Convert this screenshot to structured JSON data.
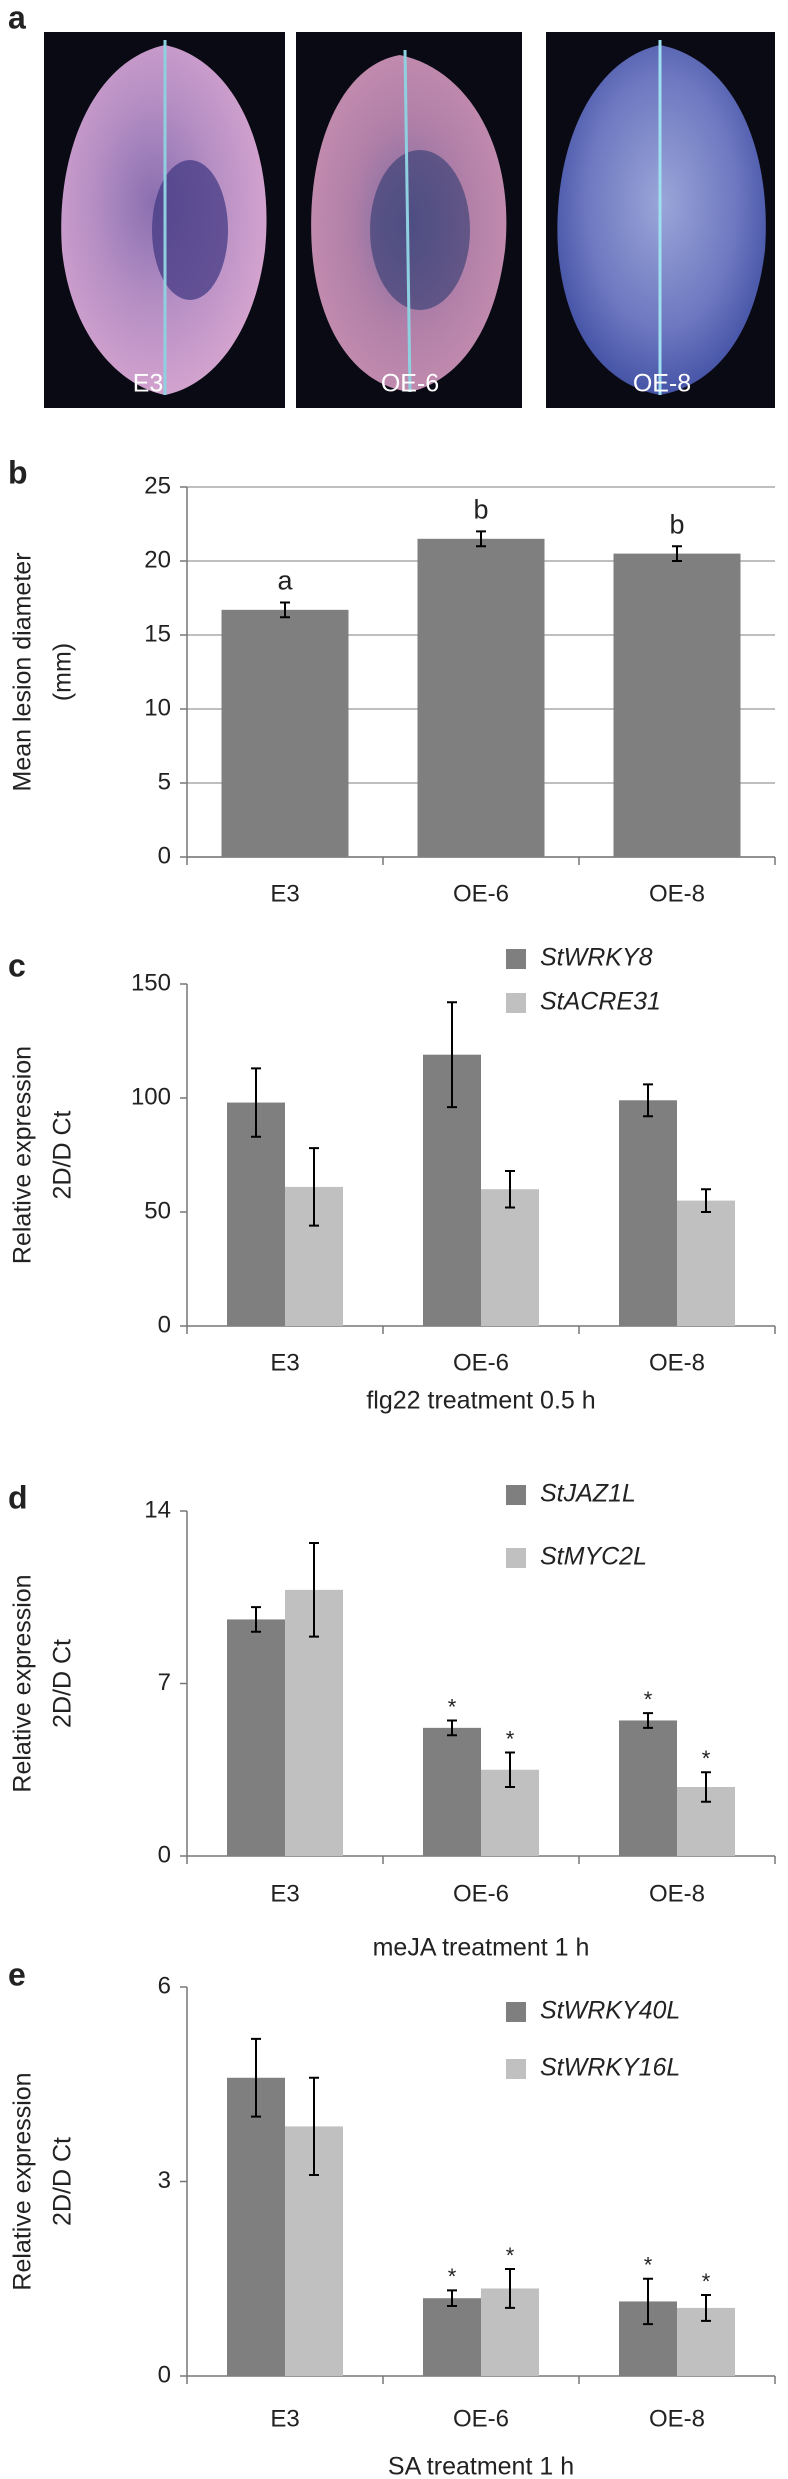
{
  "panel_a": {
    "panel": "a",
    "images": [
      "E3",
      "OE-6",
      "OE-8"
    ]
  },
  "chart_data": [
    {
      "type": "bar",
      "panel": "b",
      "ylabel": [
        "Mean lesion diameter",
        "(mm)"
      ],
      "categories": [
        "E3",
        "OE-6",
        "OE-8"
      ],
      "values": [
        16.7,
        21.5,
        20.5
      ],
      "errors": [
        0.5,
        0.5,
        0.5
      ],
      "letters": [
        "a",
        "b",
        "b"
      ],
      "color": "#7f7f7f",
      "ylim": [
        0,
        25
      ],
      "yticks": [
        0,
        5,
        10,
        15,
        20,
        25
      ],
      "grid": true
    },
    {
      "type": "grouped_bar",
      "panel": "c",
      "ylabel": [
        "Relative expression",
        "2D/D Ct"
      ],
      "xlabel": "flg22 treatment 0.5 h",
      "categories": [
        "E3",
        "OE-6",
        "OE-8"
      ],
      "series": [
        {
          "name": "StWRKY8",
          "color": "#7f7f7f",
          "values": [
            98,
            119,
            99
          ],
          "errors": [
            15,
            23,
            7
          ]
        },
        {
          "name": "StACRE31",
          "color": "#c0c0c0",
          "values": [
            61,
            60,
            55
          ],
          "errors": [
            17,
            8,
            5
          ]
        }
      ],
      "ylim": [
        0,
        150
      ],
      "yticks": [
        0,
        50,
        100,
        150
      ],
      "grid": false
    },
    {
      "type": "grouped_bar",
      "panel": "d",
      "ylabel": [
        "Relative expression",
        "2D/D Ct"
      ],
      "xlabel": "meJA treatment 1 h",
      "categories": [
        "E3",
        "OE-6",
        "OE-8"
      ],
      "series": [
        {
          "name": "StJAZ1L",
          "color": "#7f7f7f",
          "values": [
            9.6,
            5.2,
            5.5
          ],
          "errors": [
            0.5,
            0.3,
            0.3
          ],
          "marks": [
            null,
            "*",
            "*"
          ]
        },
        {
          "name": "StMYC2L",
          "color": "#c0c0c0",
          "values": [
            10.8,
            3.5,
            2.8
          ],
          "errors": [
            1.9,
            0.7,
            0.6
          ],
          "marks": [
            null,
            "*",
            "*"
          ]
        }
      ],
      "ylim": [
        0,
        14
      ],
      "yticks": [
        0,
        7,
        14
      ],
      "grid": false
    },
    {
      "type": "grouped_bar",
      "panel": "e",
      "ylabel": [
        "Relative expression",
        "2D/D Ct"
      ],
      "xlabel": "SA treatment 1 h",
      "categories": [
        "E3",
        "OE-6",
        "OE-8"
      ],
      "series": [
        {
          "name": "StWRKY40L",
          "color": "#7f7f7f",
          "values": [
            4.6,
            1.2,
            1.15
          ],
          "errors": [
            0.6,
            0.12,
            0.35
          ],
          "marks": [
            null,
            "*",
            "*"
          ]
        },
        {
          "name": "StWRKY16L",
          "color": "#c0c0c0",
          "values": [
            3.85,
            1.35,
            1.05
          ],
          "errors": [
            0.75,
            0.3,
            0.2
          ],
          "marks": [
            null,
            "*",
            "*"
          ]
        }
      ],
      "ylim": [
        0,
        6
      ],
      "yticks": [
        0,
        3,
        6
      ],
      "grid": false
    }
  ]
}
